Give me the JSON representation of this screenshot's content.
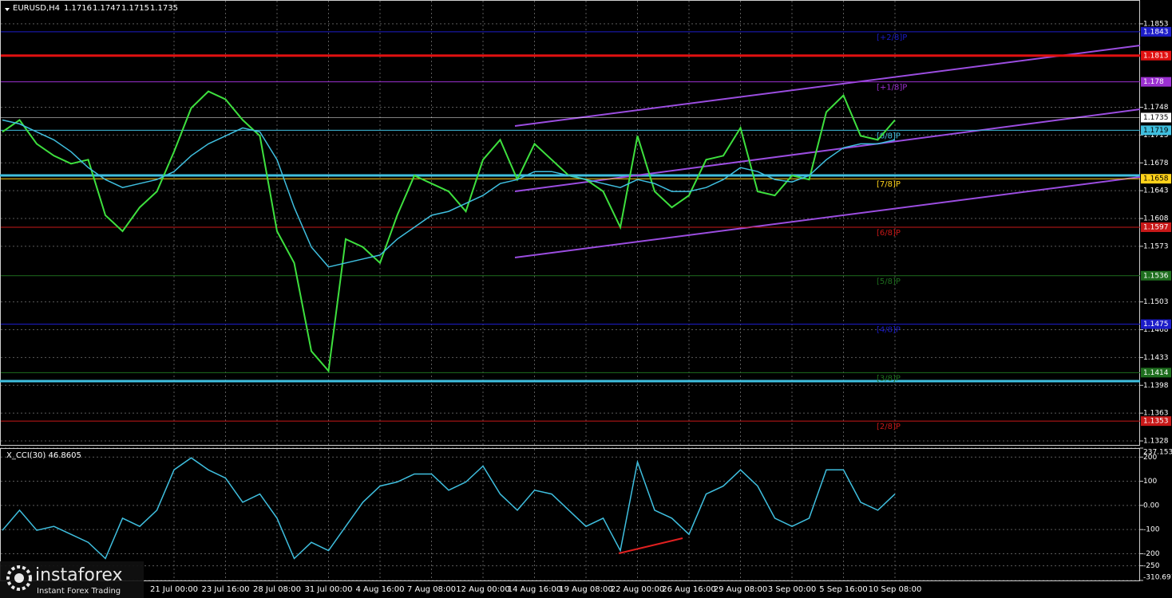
{
  "chart_data": [
    {
      "type": "line",
      "title": "EURUSD,H4",
      "ohlc": [
        1.1716,
        1.1747,
        1.1715,
        1.1735
      ],
      "categories": [
        null,
        null,
        null,
        null,
        null,
        null,
        null,
        null,
        null,
        null,
        "21 Jul 00:00",
        null,
        null,
        "23 Jul 16:00",
        null,
        null,
        "28 Jul 08:00",
        null,
        null,
        "31 Jul 00:00",
        null,
        null,
        "4 Aug 16:00",
        null,
        null,
        "7 Aug 08:00",
        null,
        null,
        "12 Aug 00:00",
        null,
        null,
        "14 Aug 16:00",
        null,
        null,
        "19 Aug 08:00",
        null,
        null,
        "22 Aug 00:00",
        null,
        null,
        "26 Aug 16:00",
        null,
        null,
        "29 Aug 08:00",
        null,
        null,
        "3 Sep 00:00",
        null,
        null,
        "5 Sep 16:00",
        null,
        null,
        "10 Sep 08:00"
      ],
      "series": [
        {
          "color": "#3ee03e",
          "values": [
            1.1717,
            1.1732,
            1.1702,
            1.1687,
            1.1677,
            1.1682,
            1.1612,
            1.1592,
            1.1622,
            1.1642,
            1.1692,
            1.1747,
            1.1768,
            1.1758,
            1.1732,
            1.1712,
            1.1592,
            1.1552,
            1.1441,
            1.1416,
            1.1582,
            1.1572,
            1.1552,
            1.1612,
            1.1662,
            1.1652,
            1.1642,
            1.1617,
            1.1682,
            1.1707,
            1.1657,
            1.1702,
            1.1682,
            1.1662,
            1.1657,
            1.1642,
            1.1597,
            1.1712,
            1.1642,
            1.1622,
            1.1637,
            1.1682,
            1.1687,
            1.1722,
            1.1642,
            1.1637,
            1.1662,
            1.1657,
            1.1742,
            1.1763,
            1.1712,
            1.1707,
            1.1732
          ]
        },
        {
          "color": "#3fbfdf",
          "values": [
            1.1732,
            1.1727,
            1.1717,
            1.1707,
            1.1692,
            1.1672,
            1.1657,
            1.1647,
            1.1652,
            1.1657,
            1.1667,
            1.1687,
            1.1702,
            1.1712,
            1.1722,
            1.1717,
            1.1682,
            1.1622,
            1.1572,
            1.1547,
            1.1552,
            1.1557,
            1.1562,
            1.1582,
            1.1597,
            1.1612,
            1.1617,
            1.1627,
            1.1637,
            1.1652,
            1.1657,
            1.1667,
            1.1667,
            1.1662,
            1.1657,
            1.1652,
            1.1647,
            1.1657,
            1.1652,
            1.1642,
            1.1642,
            1.1647,
            1.1657,
            1.1672,
            1.1667,
            1.1657,
            1.1654,
            1.1662,
            1.1682,
            1.1697,
            1.1702,
            1.1702,
            1.1707
          ]
        }
      ],
      "ylim": [
        1.1321,
        1.1883
      ],
      "yticks": [
        1.1853,
        1.1748,
        1.1713,
        1.1678,
        1.1643,
        1.1608,
        1.1573,
        1.1503,
        1.1468,
        1.1433,
        1.1398,
        1.1363,
        1.1328
      ],
      "grid": true,
      "lines": [
        {
          "value": 1.1843,
          "name": "[+2/8]P",
          "color": "#1c1cc8"
        },
        {
          "value": 1.1813,
          "color": "#e01010"
        },
        {
          "value": 1.178,
          "name": "[+1/8]P",
          "color": "#9b30d0"
        },
        {
          "value": 1.1735,
          "color": "#ffffff"
        },
        {
          "value": 1.1719,
          "name": "[8/8]P",
          "color": "#3fbfdf"
        },
        {
          "value": 1.1658,
          "name": "[7/8]P",
          "color": "#ffd21a"
        },
        {
          "value": 1.1597,
          "name": "[6/8]P",
          "color": "#c81818"
        },
        {
          "value": 1.1536,
          "name": "[5/8]P",
          "color": "#1e6e1e"
        },
        {
          "value": 1.1475,
          "name": "[4/8]P",
          "color": "#1c1cc8"
        },
        {
          "value": 1.1414,
          "name": "[3/8]P",
          "color": "#1e6e1e"
        },
        {
          "value": 1.1353,
          "name": "[2/8]P",
          "color": "#c81818"
        }
      ]
    },
    {
      "type": "line",
      "title": "X_CCI(30) 46.8605",
      "series": [
        {
          "color": "#3fbfdf",
          "values": [
            -103,
            -20,
            -103,
            -87,
            -120,
            -153,
            -220,
            -53,
            -87,
            -20,
            147,
            197,
            147,
            113,
            13,
            47,
            -53,
            -220,
            -153,
            -187,
            -87,
            13,
            80,
            97,
            130,
            130,
            63,
            97,
            163,
            47,
            -20,
            63,
            47,
            -20,
            -87,
            -53,
            -187,
            180,
            -20,
            -53,
            -120,
            47,
            80,
            147,
            80,
            -53,
            -87,
            -53,
            147,
            147,
            13,
            -20,
            47
          ]
        }
      ],
      "ylim": [
        -310.6914,
        237.1533
      ],
      "yticks": [
        237.1533,
        200,
        100,
        {
          "value": 0,
          "label": "0.00"
        },
        -100,
        -200,
        -250,
        -310.6914
      ],
      "grid": true
    }
  ],
  "logo": {
    "brand": "instaforex",
    "tagline": "Instant Forex Trading"
  }
}
